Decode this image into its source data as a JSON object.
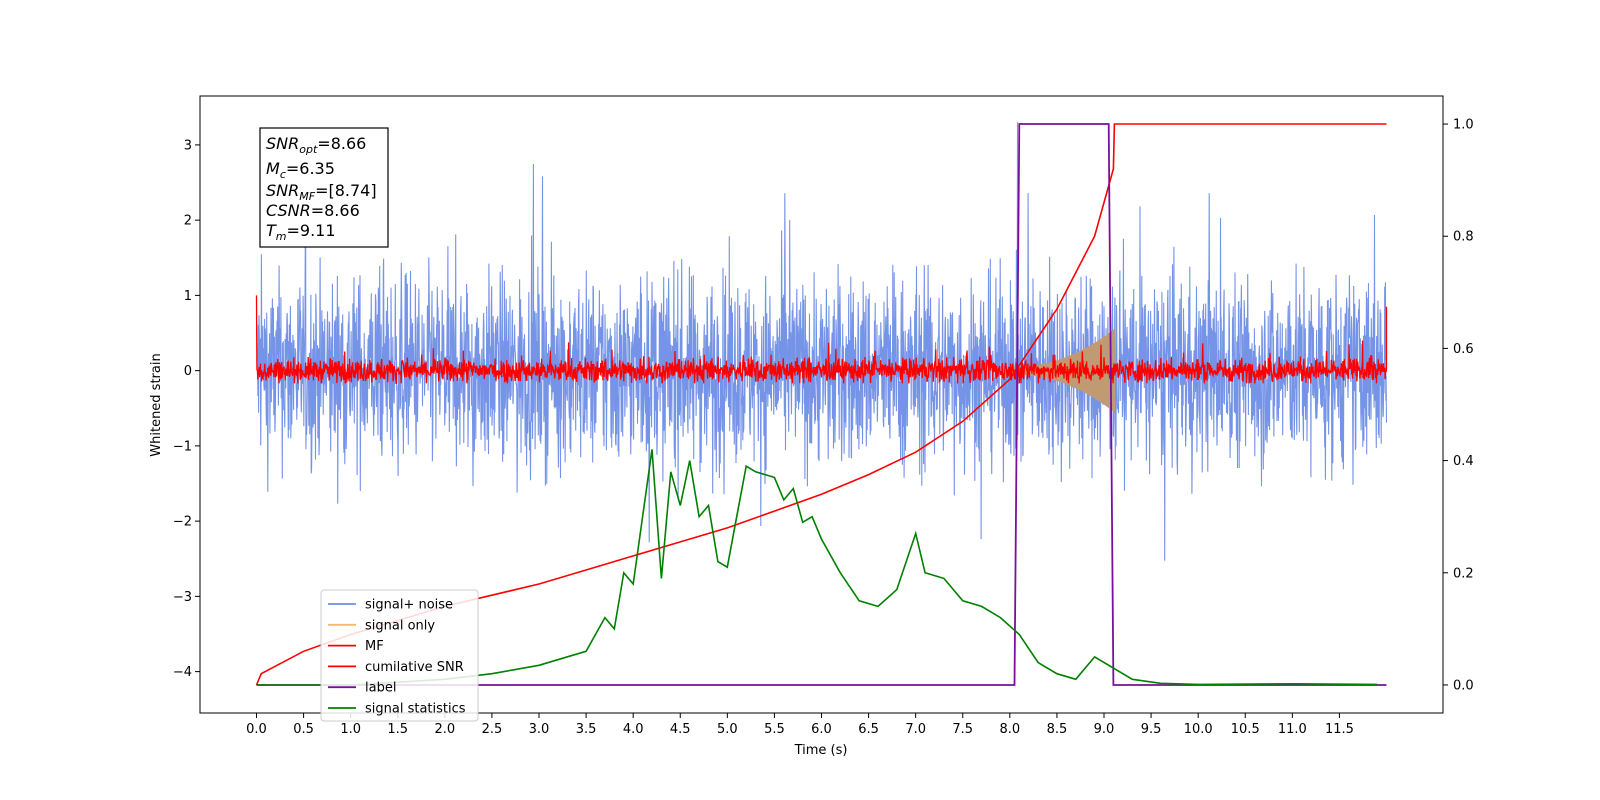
{
  "chart_data": {
    "type": "line",
    "xlabel": "Time (s)",
    "ylabel": "Whitened strain",
    "xlim": [
      -0.6,
      12.6
    ],
    "ylim": [
      -4.55,
      3.65
    ],
    "y2lim": [
      -0.05,
      1.05
    ],
    "x_ticks": [
      "0.0",
      "0.5",
      "1.0",
      "1.5",
      "2.0",
      "2.5",
      "3.0",
      "3.5",
      "4.0",
      "4.5",
      "5.0",
      "5.5",
      "6.0",
      "6.5",
      "7.0",
      "7.5",
      "8.0",
      "8.5",
      "9.0",
      "9.5",
      "10.0",
      "10.5",
      "11.0",
      "11.5"
    ],
    "x_tick_values": [
      0,
      0.5,
      1,
      1.5,
      2,
      2.5,
      3,
      3.5,
      4,
      4.5,
      5,
      5.5,
      6,
      6.5,
      7,
      7.5,
      8,
      8.5,
      9,
      9.5,
      10,
      10.5,
      11,
      11.5
    ],
    "y_ticks": [
      "3",
      "2",
      "1",
      "0",
      "−1",
      "−2",
      "−3",
      "−4"
    ],
    "y_tick_values": [
      3,
      2,
      1,
      0,
      -1,
      -2,
      -3,
      -4
    ],
    "y2_ticks": [
      "1.0",
      "0.8",
      "0.6",
      "0.4",
      "0.2",
      "0.0"
    ],
    "y2_tick_values": [
      1.0,
      0.8,
      0.6,
      0.4,
      0.2,
      0.0
    ],
    "colors": {
      "signal_noise": "#6f8ee6",
      "signal_only": "#f5b96a",
      "mf": "#ff0000",
      "cumulative_snr": "#ff0000",
      "label": "#7b0f9b",
      "signal_statistics": "#008000",
      "overlap": "#c09a72"
    },
    "legend": {
      "position": "lower-left",
      "entries": [
        {
          "label": "signal+ noise",
          "color": "#6f8ee6"
        },
        {
          "label": "signal only",
          "color": "#f5b96a"
        },
        {
          "label": "MF",
          "color": "#ff0000"
        },
        {
          "label": "cumilative SNR",
          "color": "#ff0000"
        },
        {
          "label": "label",
          "color": "#7b0f9b"
        },
        {
          "label": "signal statistics",
          "color": "#008000"
        }
      ]
    },
    "annotation": {
      "snr_opt": "=8.66",
      "mc": "=6.35",
      "snr_mf": "=[8.74]",
      "csnr": "=8.66",
      "tm": "=9.11"
    },
    "series": [
      {
        "name": "signal+ noise",
        "axis": "left",
        "x_range": [
          0,
          12
        ],
        "approx_amplitude": 2.4
      },
      {
        "name": "signal only",
        "axis": "left",
        "x_range": [
          8.0,
          9.11
        ],
        "peak_amplitude": 0.5
      },
      {
        "name": "MF",
        "axis": "left",
        "x_range": [
          0,
          12
        ],
        "approx_amplitude": 0.2
      },
      {
        "name": "cumilative SNR",
        "axis": "right",
        "x": [
          0,
          0.05,
          0.5,
          1,
          1.5,
          2,
          2.5,
          3,
          3.5,
          4,
          4.5,
          5,
          5.5,
          6,
          6.5,
          7,
          7.5,
          8,
          8.5,
          8.9,
          9.1,
          9.11,
          12
        ],
        "y": [
          0,
          0.02,
          0.06,
          0.09,
          0.115,
          0.14,
          0.16,
          0.18,
          0.205,
          0.23,
          0.255,
          0.28,
          0.31,
          0.34,
          0.375,
          0.415,
          0.47,
          0.545,
          0.67,
          0.8,
          0.92,
          1.0,
          1.0
        ]
      },
      {
        "name": "label",
        "axis": "right",
        "x": [
          0,
          8.05,
          8.1,
          9.05,
          9.1,
          12
        ],
        "y": [
          0,
          0,
          1,
          1,
          0,
          0
        ]
      },
      {
        "name": "signal statistics",
        "axis": "right",
        "x": [
          0,
          1,
          2,
          2.5,
          3,
          3.2,
          3.5,
          3.7,
          3.8,
          3.9,
          4.0,
          4.1,
          4.2,
          4.3,
          4.4,
          4.5,
          4.6,
          4.7,
          4.8,
          4.9,
          5.0,
          5.1,
          5.2,
          5.3,
          5.5,
          5.6,
          5.7,
          5.8,
          5.9,
          6.0,
          6.2,
          6.4,
          6.6,
          6.8,
          7.0,
          7.1,
          7.3,
          7.5,
          7.7,
          7.9,
          8.1,
          8.3,
          8.5,
          8.7,
          8.9,
          9.1,
          9.3,
          9.6,
          10,
          11,
          11.9
        ],
        "y": [
          0,
          0,
          0.01,
          0.02,
          0.035,
          0.045,
          0.06,
          0.12,
          0.1,
          0.2,
          0.18,
          0.3,
          0.42,
          0.19,
          0.38,
          0.32,
          0.4,
          0.3,
          0.32,
          0.22,
          0.21,
          0.3,
          0.39,
          0.38,
          0.37,
          0.33,
          0.35,
          0.29,
          0.3,
          0.26,
          0.2,
          0.15,
          0.14,
          0.17,
          0.27,
          0.2,
          0.19,
          0.15,
          0.14,
          0.12,
          0.09,
          0.04,
          0.02,
          0.01,
          0.05,
          0.03,
          0.01,
          0.003,
          0.001,
          0.002,
          0.001
        ]
      }
    ]
  }
}
